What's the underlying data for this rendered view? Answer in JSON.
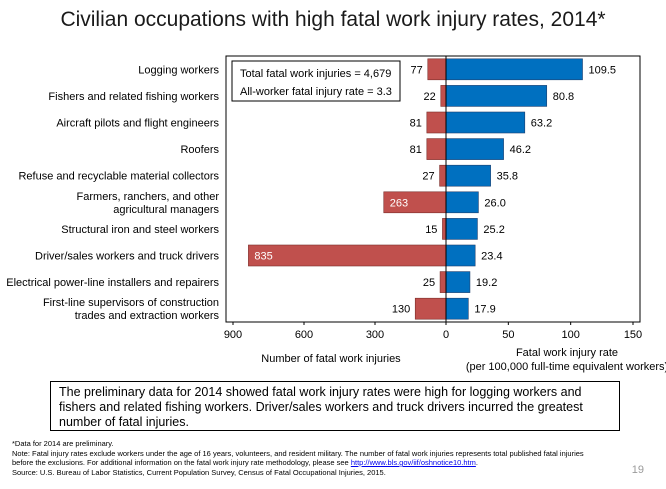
{
  "title": "Civilian occupations with high fatal work injury rates, 2014*",
  "chart_data": {
    "type": "bar",
    "categories": [
      [
        "Logging workers"
      ],
      [
        "Fishers and related fishing workers"
      ],
      [
        "Aircraft pilots and flight engineers"
      ],
      [
        "Roofers"
      ],
      [
        "Refuse and recyclable material collectors"
      ],
      [
        "Farmers, ranchers, and other",
        "agricultural managers"
      ],
      [
        "Structural iron and steel workers"
      ],
      [
        "Driver/sales workers and truck drivers"
      ],
      [
        "Electrical power-line installers and repairers"
      ],
      [
        "First-line supervisors of construction",
        "trades and extraction workers"
      ]
    ],
    "series": [
      {
        "name": "Number of fatal work injuries",
        "values": [
          77,
          22,
          81,
          81,
          27,
          263,
          15,
          835,
          25,
          130
        ],
        "labels": [
          "77",
          "22",
          "81",
          "81",
          "27",
          "263",
          "15",
          "835",
          "25",
          "130"
        ],
        "color": "#c0504d",
        "xlim": [
          900,
          0
        ],
        "ticks": [
          "900",
          "600",
          "300",
          "0"
        ],
        "xlabel": "Number of fatal work injuries"
      },
      {
        "name": "Fatal work injury rate (per 100,000 full-time equivalent workers)",
        "values": [
          109.5,
          80.8,
          63.2,
          46.2,
          35.8,
          26.0,
          25.2,
          23.4,
          19.2,
          17.9
        ],
        "labels": [
          "109.5",
          "80.8",
          "63.2",
          "46.2",
          "35.8",
          "26.0",
          "25.2",
          "23.4",
          "19.2",
          "17.9"
        ],
        "color": "#0070c0",
        "xlim": [
          0,
          150
        ],
        "ticks": [
          "0",
          "50",
          "100",
          "150"
        ],
        "xlabel": [
          "Fatal work injury rate",
          "(per 100,000 full-time equivalent workers)"
        ]
      }
    ],
    "annotations": [
      "Total fatal work injuries = 4,679",
      "All-worker fatal injury rate = 3.3"
    ]
  },
  "summary": "The preliminary data for 2014 showed fatal work injury rates were high for logging workers and fishers and related fishing workers. Driver/sales workers and truck drivers incurred the greatest number of fatal injuries.",
  "footnotes": {
    "line1": "*Data for 2014 are preliminary.",
    "line2": "Note: Fatal injury rates exclude workers under the age of 16 years, volunteers, and resident military. The number of fatal work injuries represents total published fatal injuries",
    "line3_pre": "before the exclusions. For additional information on the fatal work injury rate methodology, please see ",
    "line3_link": "http://www.bls.gov/iif/oshnotice10.htm",
    "line3_post": ".",
    "line4": "Source:  U.S. Bureau of Labor Statistics, Current Population Survey, Census of Fatal Occupational Injuries, 2015."
  },
  "page_number": "19"
}
